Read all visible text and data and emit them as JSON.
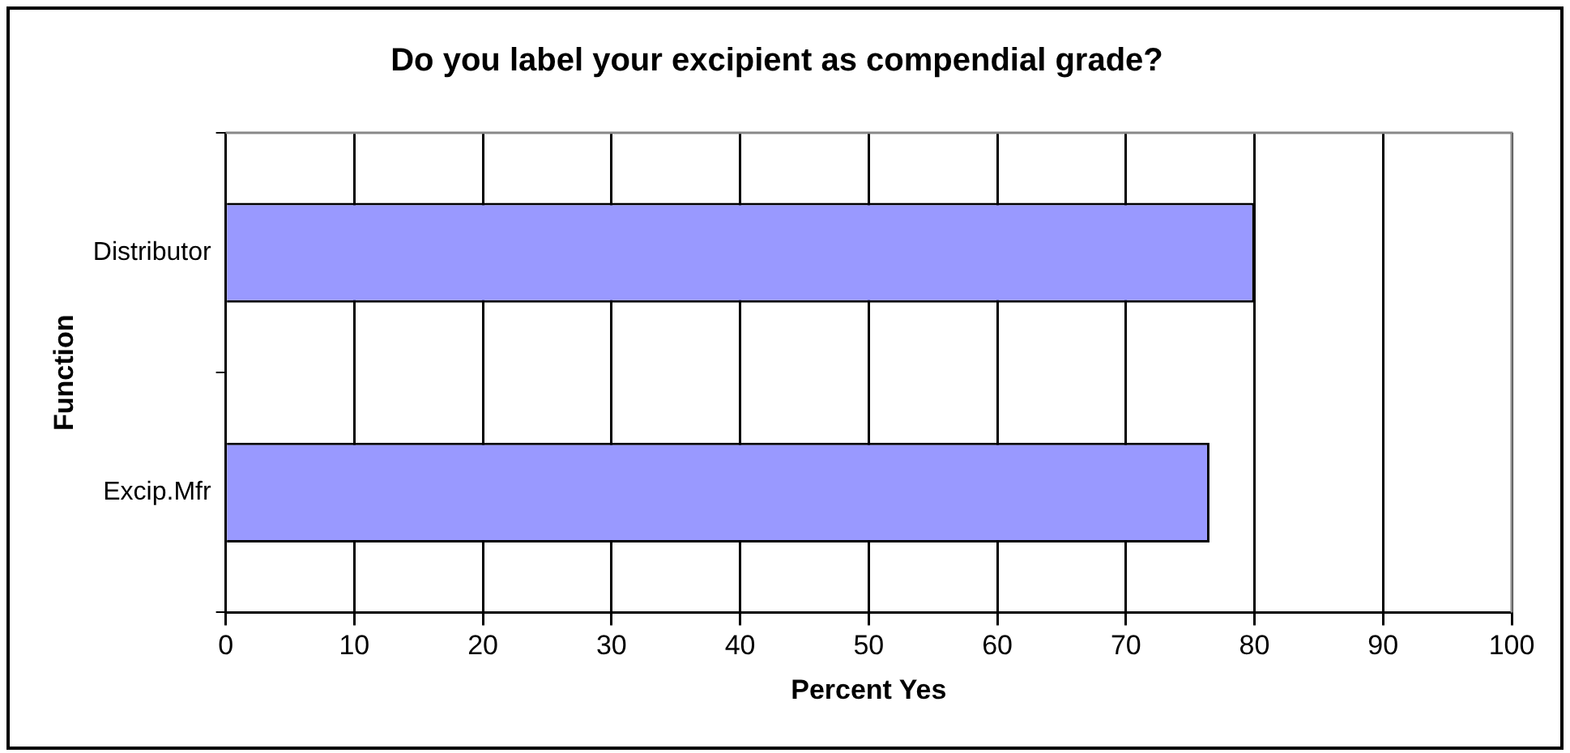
{
  "chart_data": {
    "type": "bar",
    "orientation": "horizontal",
    "title": "Do you label your excipient as compendial grade?",
    "xlabel": "Percent Yes",
    "ylabel": "Function",
    "categories": [
      "Distributor",
      "Excip.Mfr"
    ],
    "values": [
      80,
      76.5
    ],
    "color": "#9999ff",
    "xlim": [
      0,
      100
    ],
    "xticks": [
      0,
      10,
      20,
      30,
      40,
      50,
      60,
      70,
      80,
      90,
      100
    ],
    "grid": "x",
    "legend": false
  }
}
